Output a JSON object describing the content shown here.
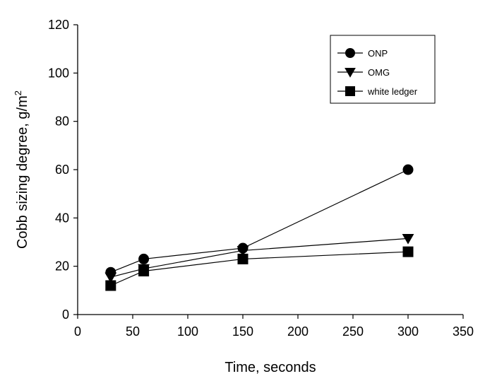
{
  "chart_data": {
    "type": "line",
    "title": "",
    "xlabel": "Time, seconds",
    "ylabel": "Cobb sizing degree, g/m",
    "ylabel_superscript": "2",
    "xlim": [
      0,
      350
    ],
    "ylim": [
      0,
      120
    ],
    "xticks": [
      0,
      50,
      100,
      150,
      200,
      250,
      300,
      350
    ],
    "yticks": [
      0,
      20,
      40,
      60,
      80,
      100,
      120
    ],
    "grid": false,
    "legend_position": "top-right",
    "x": [
      30,
      60,
      150,
      300
    ],
    "series": [
      {
        "name": "ONP",
        "marker": "circle",
        "values": [
          17.5,
          23,
          27.5,
          60
        ]
      },
      {
        "name": "OMG",
        "marker": "triangle-down",
        "values": [
          15.5,
          19,
          26.5,
          31.5
        ]
      },
      {
        "name": "white ledger",
        "marker": "square",
        "values": [
          12,
          18,
          23,
          26
        ]
      }
    ],
    "colors": {
      "line": "#000000",
      "marker": "#000000",
      "background": "#ffffff"
    }
  }
}
